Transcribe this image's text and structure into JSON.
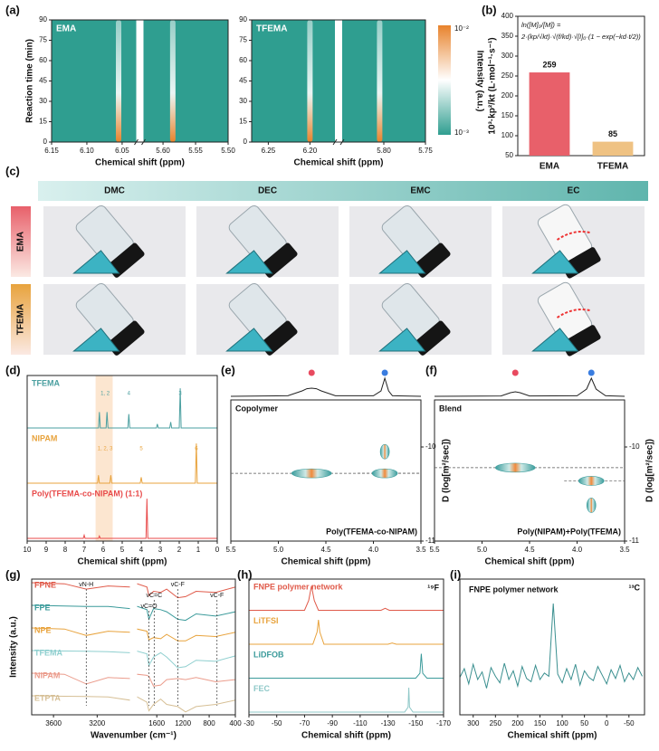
{
  "chart_data": [
    {
      "type": "contour",
      "label": "(a)",
      "title": "EMA",
      "ylabel": "Reaction time (min)",
      "xlabel": "Chemical shift (ppm)",
      "ylim": [
        0,
        90
      ],
      "yticks": [
        0,
        15,
        30,
        45,
        60,
        75,
        90
      ],
      "xlim_segments": [
        [
          6.15,
          6.03
        ],
        [
          5.63,
          5.5
        ]
      ],
      "xticks": [
        6.15,
        {
          "value": 6.1,
          "label": "6.10"
        },
        6.05,
        {
          "value": 5.6,
          "label": "5.60"
        },
        5.55,
        {
          "value": 5.5,
          "label": "5.50"
        }
      ],
      "peaks": [
        6.055,
        5.585
      ],
      "colormap": [
        "#e8832c",
        "#ffffff",
        "#2f9e90"
      ]
    },
    {
      "type": "contour",
      "title": "TFEMA",
      "xlabel": "Chemical shift (ppm)",
      "ylim": [
        0,
        90
      ],
      "yticks": [
        0,
        15,
        30,
        45,
        60,
        75,
        90
      ],
      "xlim_segments": [
        [
          6.27,
          6.17
        ],
        [
          5.85,
          5.75
        ]
      ],
      "xticks": [
        6.25,
        {
          "value": 6.2,
          "label": "6.20"
        },
        {
          "value": 5.8,
          "label": "5.80"
        },
        5.75
      ],
      "peaks": [
        6.2,
        5.805
      ],
      "colormap": [
        "#e8832c",
        "#ffffff",
        "#2f9e90"
      ],
      "colorbar_label": "Intensity (a.u.)",
      "colorbar_ticks": [
        "10⁻²",
        "10⁻³"
      ]
    },
    {
      "type": "bar",
      "label": "(b)",
      "ylabel": "10³·kp²/kt (L·mol⁻¹·s⁻¹)",
      "equation": [
        "ln([M]₀/[M]) =",
        "2·(kp/√kt)·√(f/kd)·√[I]₀·(1 − exp(−kd·t/2))"
      ],
      "categories": [
        "EMA",
        "TFEMA"
      ],
      "values": [
        259,
        85
      ],
      "colors": [
        "#e8606a",
        "#efc283"
      ],
      "ylim": [
        50,
        400
      ],
      "yticks": [
        50,
        100,
        150,
        200,
        250,
        300,
        350,
        400
      ]
    },
    {
      "type": "image-grid",
      "label": "(c)",
      "columns": [
        "DMC",
        "DEC",
        "EMC",
        "EC"
      ],
      "rows": [
        "EMA",
        "TFEMA"
      ]
    },
    {
      "type": "nmr",
      "label": "(d)",
      "xlabel": "Chemical shift (ppm)",
      "xlim": [
        10,
        0
      ],
      "xticks": [
        10,
        9,
        8,
        7,
        6,
        5,
        4,
        3,
        2,
        1,
        0
      ],
      "highlight": [
        6.4,
        5.5
      ],
      "highlight_color": "#fbdcbc",
      "series": [
        {
          "name": "TFEMA",
          "color": "#4a9fa0",
          "x": [
            10,
            6.25,
            6.2,
            6.15,
            5.85,
            5.8,
            5.75,
            4.7,
            4.65,
            4.6,
            3.2,
            3.15,
            3.1,
            2.5,
            2.45,
            2.4,
            2.0,
            1.95,
            1.9,
            0
          ],
          "values": [
            0,
            0,
            0.4,
            0,
            0,
            0.4,
            0,
            0,
            0.35,
            0,
            0,
            0.1,
            0,
            0,
            0.15,
            0,
            0,
            1,
            0,
            0
          ]
        },
        {
          "name": "NIPAM",
          "color": "#e8a33d",
          "x": [
            10,
            6.3,
            6.25,
            6.2,
            5.65,
            5.6,
            5.55,
            4.05,
            4.0,
            3.95,
            1.15,
            1.1,
            1.05,
            0
          ],
          "values": [
            0,
            0,
            0.2,
            0,
            0,
            0.2,
            0,
            0,
            0.15,
            0,
            0,
            1,
            0,
            0
          ]
        },
        {
          "name": "Poly(TFEMA-co-NIPAM) (1:1)",
          "color": "#e84a4a",
          "x": [
            10,
            7.05,
            7.0,
            6.95,
            6.25,
            6.2,
            6.15,
            3.75,
            3.7,
            3.65,
            0
          ],
          "values": [
            0,
            0,
            0.08,
            0,
            0,
            0.06,
            0,
            0,
            1,
            0,
            0
          ]
        }
      ],
      "annotations": [
        {
          "text": "1, 2",
          "x": 5.9,
          "series": 0
        },
        {
          "text": "4",
          "x": 4.65,
          "series": 0
        },
        {
          "text": "3",
          "x": 1.95,
          "series": 0
        },
        {
          "text": "1, 2, 3",
          "x": 5.9,
          "series": 1
        },
        {
          "text": "5",
          "x": 4.0,
          "series": 1
        },
        {
          "text": "6",
          "x": 1.1,
          "series": 1
        }
      ]
    },
    {
      "type": "dosy",
      "label": "(e)",
      "title": "Copolymer",
      "caption": "Poly(TFEMA-co-NIPAM)",
      "xlabel": "Chemical shift (ppm)",
      "ylabel": "D (log[m²/sec])",
      "xlim": [
        5.5,
        3.5
      ],
      "xticks": [
        5.5,
        {
          "value": 5,
          "label": "5.0"
        },
        4.5,
        {
          "value": 4,
          "label": "4.0"
        },
        3.5
      ],
      "ylim": [
        -9.5,
        -11
      ],
      "yticks": [
        -10,
        -11
      ],
      "projection": {
        "color": "#222222",
        "x": [
          5.5,
          4.9,
          4.75,
          4.7,
          4.65,
          4.6,
          4.55,
          4.4,
          4.0,
          3.92,
          3.88,
          3.84,
          3.8,
          3.5
        ],
        "values": [
          0,
          0.03,
          0.3,
          0.42,
          0.45,
          0.42,
          0.3,
          0.03,
          0.03,
          0.3,
          1,
          0.3,
          0.03,
          0
        ]
      },
      "spots": {
        "x": [
          4.65,
          3.88,
          3.88
        ],
        "y": [
          -10.28,
          -10.28,
          -10.05
        ]
      },
      "marker_colors": [
        "#e84a5f",
        "#3a7de0"
      ],
      "spot_colors": [
        "#f08a3c",
        "#3a9c9c"
      ]
    },
    {
      "type": "dosy",
      "label": "(f)",
      "title": "Blend",
      "caption": "Poly(NIPAM)+Poly(TFEMA)",
      "xlabel": "Chemical shift (ppm)",
      "ylabel": "D (log[m²/sec])",
      "xlim": [
        5.5,
        3.5
      ],
      "xticks": [
        5.5,
        {
          "value": 5,
          "label": "5.0"
        },
        4.5,
        {
          "value": 4,
          "label": "4.0"
        },
        3.5
      ],
      "ylim": [
        -9.5,
        -11
      ],
      "yticks": [
        -10,
        -11
      ],
      "projection": {
        "color": "#222222",
        "x": [
          5.5,
          4.8,
          4.7,
          4.65,
          4.6,
          4.5,
          4.0,
          3.9,
          3.85,
          3.8,
          3.7,
          3.5
        ],
        "values": [
          0,
          0.02,
          0.2,
          0.25,
          0.2,
          0.02,
          0.03,
          0.4,
          1,
          0.4,
          0.03,
          0
        ]
      },
      "spots": {
        "x": [
          4.65,
          3.85,
          3.85
        ],
        "y": [
          -10.22,
          -10.36,
          -10.62
        ]
      },
      "marker_colors": [
        "#e84a5f",
        "#3a7de0"
      ],
      "spot_colors": [
        "#f08a3c",
        "#3a9c9c"
      ]
    },
    {
      "type": "ftir",
      "label": "(g)",
      "xlabel": "Wavenumber (cm⁻¹)",
      "ylabel": "Intensity (a.u.)",
      "xlim_segments": [
        [
          3800,
          2900
        ],
        [
          1900,
          400
        ]
      ],
      "xticks": [
        3600,
        3200,
        1600,
        1200,
        800,
        400
      ],
      "series": [
        {
          "name": "FPNE",
          "color": "#e05a4a",
          "x": [
            3800,
            3500,
            3300,
            3100,
            2900,
            1900,
            1750,
            1720,
            1650,
            1540,
            1450,
            1280,
            1160,
            1000,
            700,
            400
          ],
          "values": [
            1,
            0.95,
            0.7,
            0.85,
            0.8,
            0.95,
            0.8,
            0.4,
            0.6,
            0.55,
            0.7,
            0.3,
            0.35,
            0.6,
            0.55,
            0.8
          ]
        },
        {
          "name": "FPE",
          "color": "#3a9a9a",
          "x": [
            3800,
            3500,
            3300,
            3100,
            2900,
            1900,
            1750,
            1720,
            1650,
            1540,
            1450,
            1280,
            1160,
            1000,
            700,
            400
          ],
          "values": [
            1,
            0.97,
            0.95,
            0.95,
            0.85,
            0.95,
            0.8,
            0.35,
            0.85,
            0.8,
            0.7,
            0.35,
            0.3,
            0.6,
            0.5,
            0.7
          ]
        },
        {
          "name": "NPE",
          "color": "#e8a33d",
          "x": [
            3800,
            3500,
            3300,
            3100,
            2900,
            1900,
            1750,
            1720,
            1650,
            1540,
            1450,
            1280,
            1160,
            1000,
            700,
            400
          ],
          "values": [
            1,
            0.95,
            0.65,
            0.85,
            0.8,
            0.95,
            0.85,
            0.45,
            0.55,
            0.5,
            0.7,
            0.4,
            0.4,
            0.65,
            0.6,
            0.8
          ]
        },
        {
          "name": "TFEMA",
          "color": "#8fcfcf",
          "x": [
            3800,
            3500,
            3300,
            3100,
            2900,
            1900,
            1750,
            1720,
            1650,
            1540,
            1450,
            1280,
            1160,
            1000,
            700,
            400
          ],
          "values": [
            1,
            0.98,
            0.97,
            0.95,
            0.9,
            0.97,
            0.85,
            0.3,
            0.7,
            0.9,
            0.7,
            0.2,
            0.25,
            0.55,
            0.5,
            0.75
          ]
        },
        {
          "name": "NIPAM",
          "color": "#eb9c8c",
          "x": [
            3800,
            3500,
            3300,
            3100,
            2900,
            1900,
            1750,
            1720,
            1650,
            1540,
            1450,
            1280,
            1160,
            1000,
            700,
            400
          ],
          "values": [
            1,
            0.95,
            0.5,
            0.8,
            0.75,
            0.95,
            0.9,
            0.85,
            0.4,
            0.45,
            0.7,
            0.75,
            0.7,
            0.8,
            0.6,
            0.7
          ]
        },
        {
          "name": "ETPTA",
          "color": "#d6bf95",
          "x": [
            3800,
            3500,
            3300,
            3100,
            2900,
            1900,
            1750,
            1720,
            1650,
            1540,
            1450,
            1280,
            1160,
            1000,
            700,
            400
          ],
          "values": [
            1,
            0.98,
            0.97,
            0.95,
            0.8,
            0.95,
            0.7,
            0.3,
            0.6,
            0.85,
            0.6,
            0.5,
            0.25,
            0.5,
            0.6,
            0.8
          ]
        }
      ],
      "annotations": [
        {
          "text": "νN-H",
          "x": 3300
        },
        {
          "text": "νC=C",
          "x": 1640
        },
        {
          "text": "νC=O",
          "x": 1720
        },
        {
          "text": "νC-F",
          "x": 1280
        },
        {
          "text": "νC-F",
          "x": 680
        }
      ]
    },
    {
      "type": "nmr",
      "label": "(h)",
      "nucleus": "¹⁹F",
      "xlabel": "Chemical shift (ppm)",
      "xlim": [
        -30,
        -170
      ],
      "xticks": [
        -30,
        -50,
        -70,
        -90,
        -110,
        -130,
        -150,
        -170
      ],
      "series": [
        {
          "name": "FNPE polymer  network",
          "color": "#e05a4a",
          "x": [
            -30,
            -70,
            -73,
            -75,
            -77,
            -80,
            -125,
            -128,
            -131,
            -170
          ],
          "values": [
            0,
            0,
            0.4,
            1,
            0.4,
            0,
            0,
            0.08,
            0,
            0
          ]
        },
        {
          "name": "LiTFSI",
          "color": "#e8a33d",
          "x": [
            -30,
            -76,
            -79,
            -80,
            -81,
            -84,
            -130,
            -133,
            -136,
            -170
          ],
          "values": [
            0,
            0,
            0.5,
            1,
            0.5,
            0,
            0,
            0.05,
            0,
            0
          ]
        },
        {
          "name": "LiDFOB",
          "color": "#3a9a9a",
          "x": [
            -30,
            -150,
            -153,
            -154,
            -155,
            -158,
            -170
          ],
          "values": [
            0,
            0,
            0.2,
            1,
            0.2,
            0,
            0
          ]
        },
        {
          "name": "FEC",
          "color": "#8fc8c8",
          "x": [
            -30,
            -142,
            -144.5,
            -145,
            -145.5,
            -148,
            -170
          ],
          "values": [
            0,
            0,
            0.2,
            1,
            0.2,
            0,
            0
          ]
        }
      ]
    },
    {
      "type": "nmr",
      "label": "(i)",
      "title": "FNPE polymer network",
      "nucleus": "¹³C",
      "xlabel": "Chemical shift (ppm)",
      "xlim": [
        330,
        -85
      ],
      "xticks": [
        300,
        250,
        200,
        150,
        100,
        50,
        0,
        -50
      ],
      "series": [
        {
          "color": "#3a8f8f",
          "x": [
            330,
            320,
            310,
            300,
            290,
            280,
            270,
            260,
            250,
            240,
            230,
            220,
            210,
            200,
            190,
            180,
            170,
            160,
            150,
            140,
            130,
            120,
            110,
            100,
            90,
            80,
            70,
            60,
            50,
            40,
            30,
            20,
            10,
            0,
            -10,
            -20,
            -30,
            -40,
            -50,
            -60,
            -70,
            -80
          ],
          "values": [
            0.32,
            0.4,
            0.26,
            0.44,
            0.3,
            0.37,
            0.22,
            0.41,
            0.33,
            0.27,
            0.45,
            0.3,
            0.38,
            0.24,
            0.42,
            0.31,
            0.28,
            0.43,
            0.3,
            0.36,
            0.33,
            1,
            0.35,
            0.27,
            0.4,
            0.3,
            0.44,
            0.25,
            0.38,
            0.32,
            0.29,
            0.42,
            0.34,
            0.26,
            0.39,
            0.31,
            0.43,
            0.28,
            0.36,
            0.3,
            0.41,
            0.33
          ]
        }
      ]
    }
  ]
}
